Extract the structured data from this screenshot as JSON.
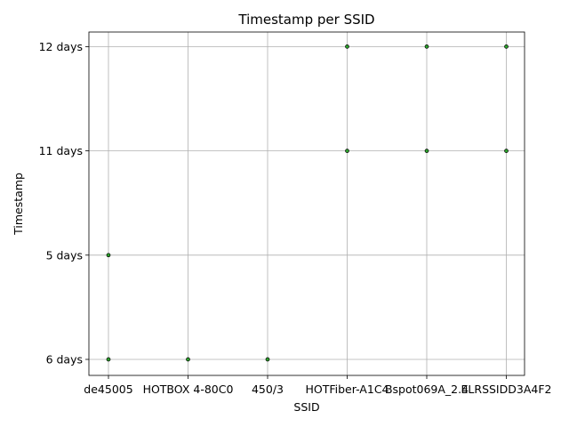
{
  "chart_data": {
    "type": "scatter",
    "title": "Timestamp per SSID",
    "xlabel": "SSID",
    "ylabel": "Timestamp",
    "categories": [
      "de45005",
      "HOTBOX 4-80C0",
      "450/3",
      "HOTFiber-A1C4",
      "Bspot069A_2.4",
      "ELRSSIDD3A4F2"
    ],
    "y_categories": [
      "6 days",
      "5 days",
      "11 days",
      "12 days"
    ],
    "grid": true,
    "points": [
      {
        "x": "de45005",
        "y": "6 days"
      },
      {
        "x": "de45005",
        "y": "5 days"
      },
      {
        "x": "HOTBOX 4-80C0",
        "y": "6 days"
      },
      {
        "x": "450/3",
        "y": "6 days"
      },
      {
        "x": "HOTFiber-A1C4",
        "y": "11 days"
      },
      {
        "x": "HOTFiber-A1C4",
        "y": "12 days"
      },
      {
        "x": "Bspot069A_2.4",
        "y": "11 days"
      },
      {
        "x": "Bspot069A_2.4",
        "y": "12 days"
      },
      {
        "x": "ELRSSIDD3A4F2",
        "y": "11 days"
      },
      {
        "x": "ELRSSIDD3A4F2",
        "y": "12 days"
      }
    ],
    "colors": {
      "marker_fill": "#2ca02c",
      "marker_edge": "#000000",
      "grid": "#b0b0b0"
    }
  }
}
